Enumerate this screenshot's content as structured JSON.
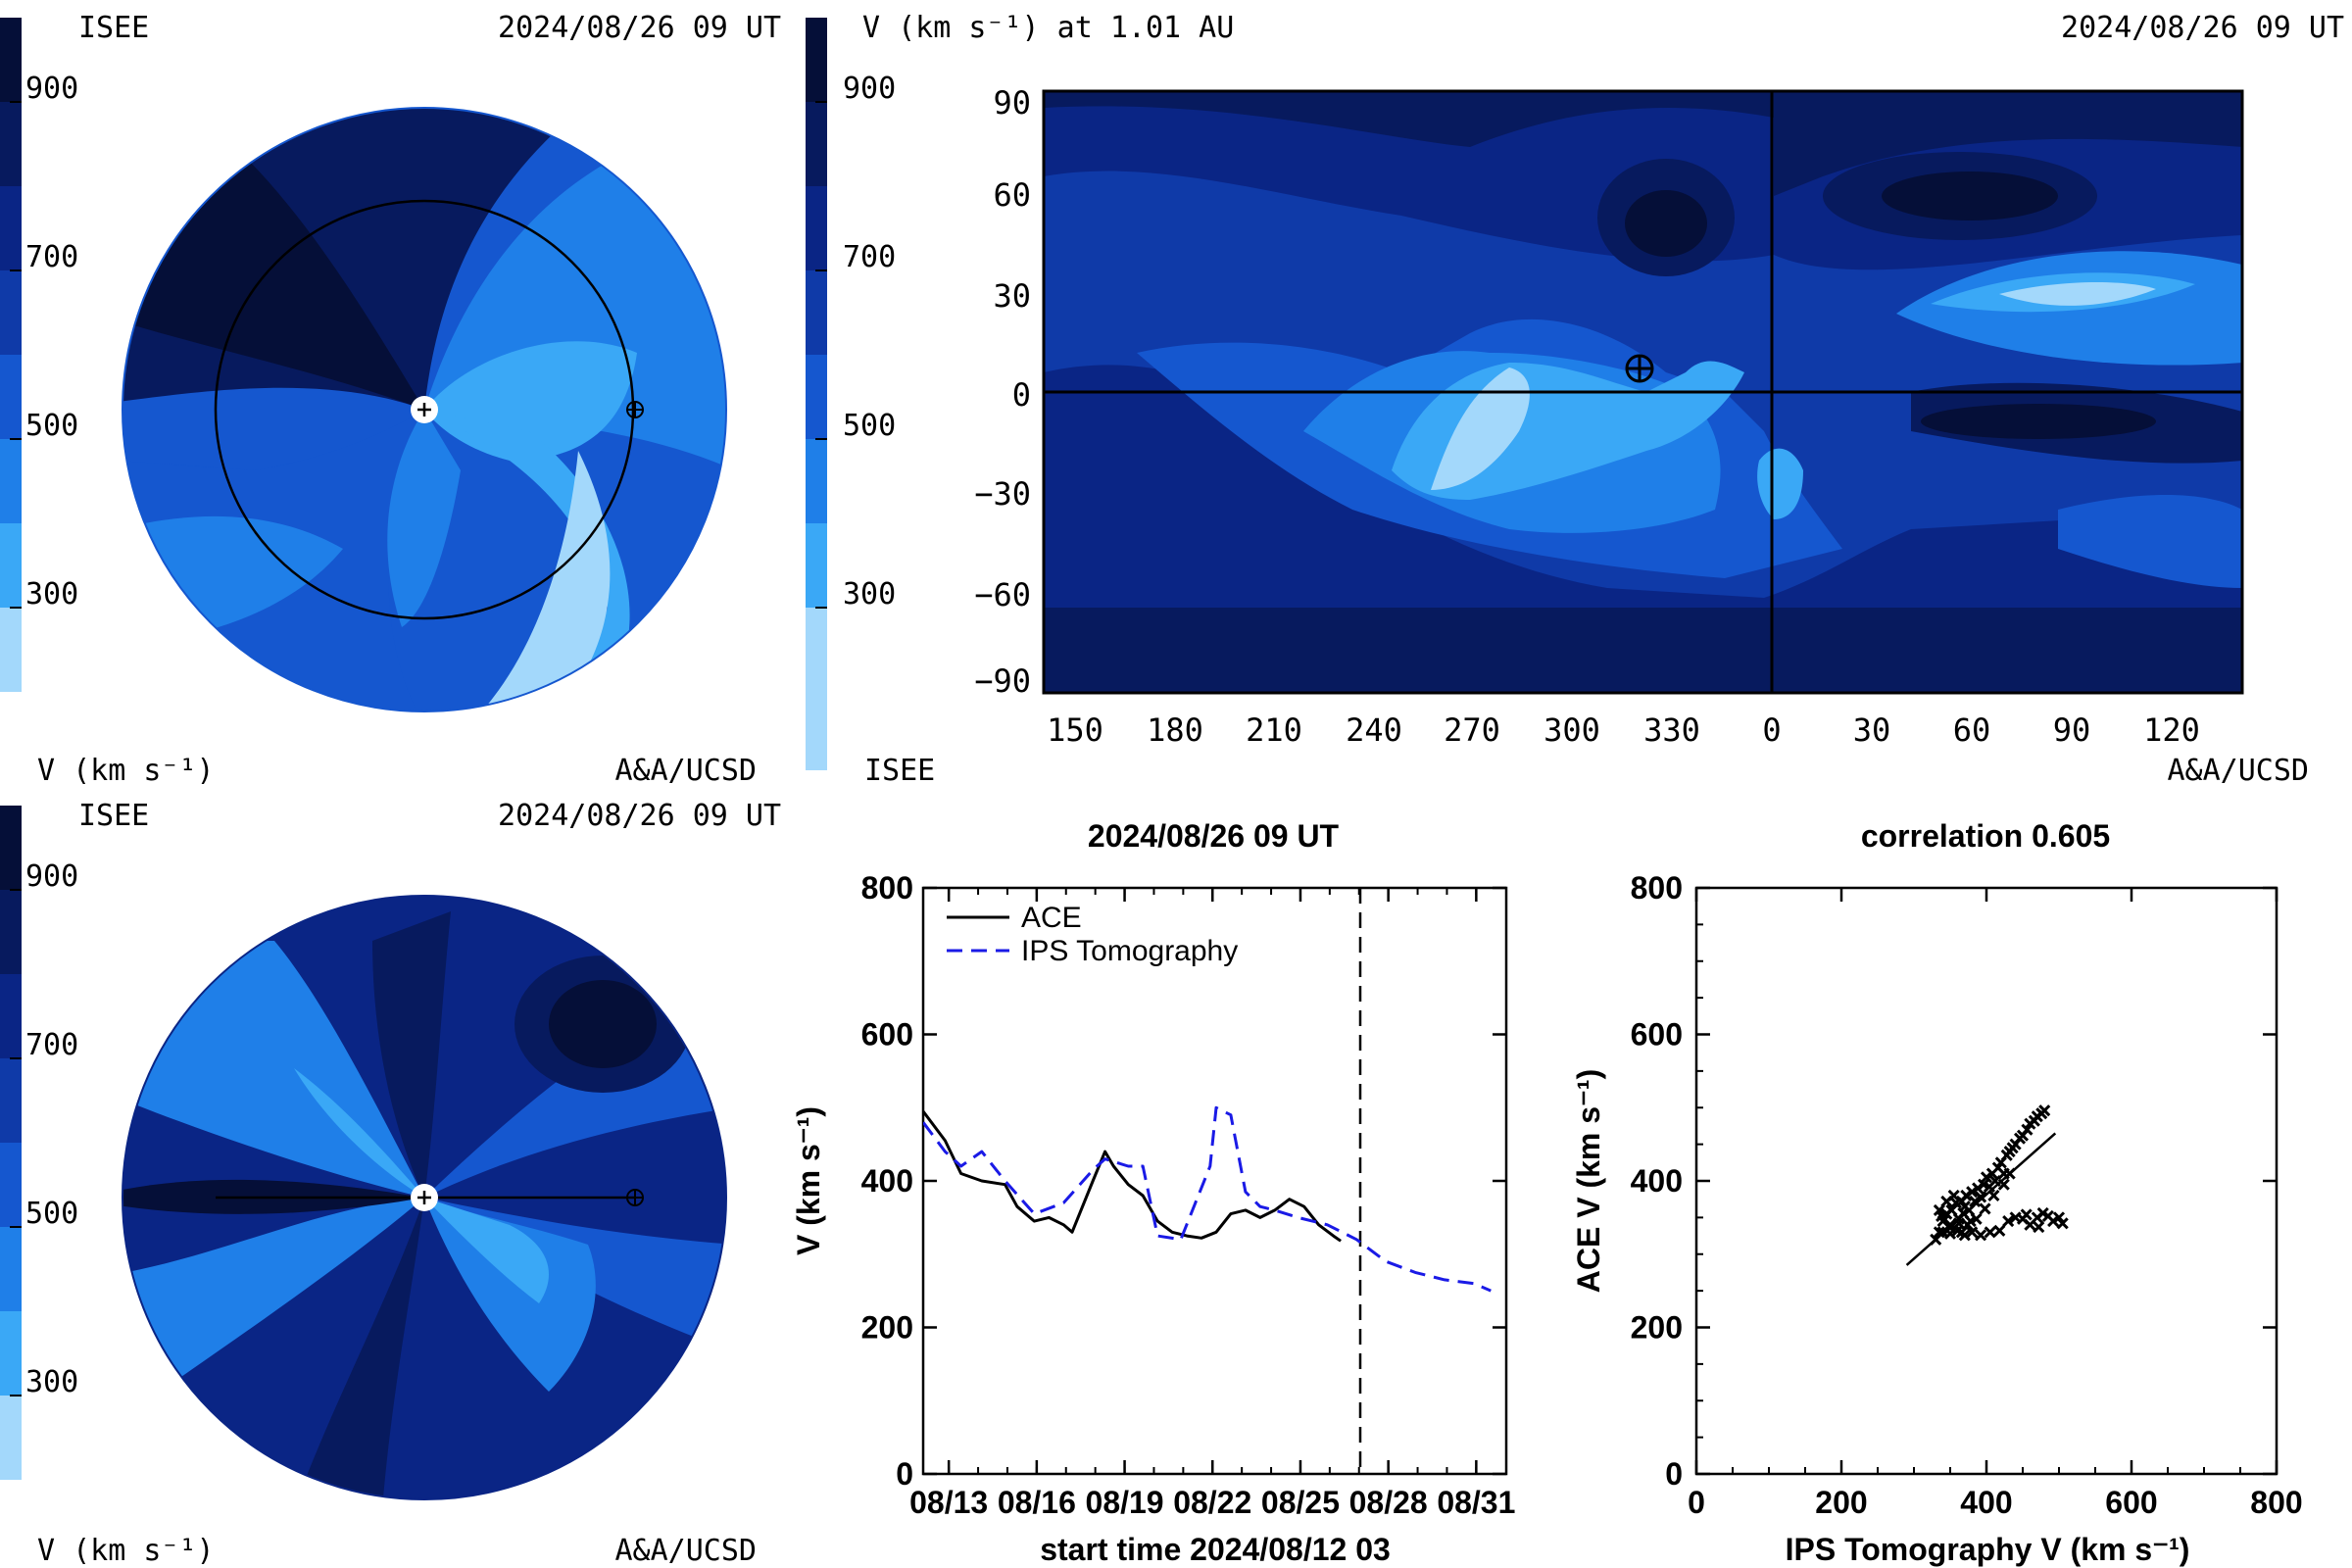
{
  "colors": {
    "band_ramp_light_to_dark": [
      "#a3d8fb",
      "#3aa8f6",
      "#1f7fe8",
      "#1557cf",
      "#0f3aa8",
      "#0a2585",
      "#071a5e",
      "#050f38"
    ],
    "tomography_line": "#1a1ae6",
    "ace_line": "#000000"
  },
  "colorbar": {
    "ticks": [
      {
        "label": "900",
        "value": 900
      },
      {
        "label": "700",
        "value": 700
      },
      {
        "label": "500",
        "value": 500
      },
      {
        "label": "300",
        "value": 300
      }
    ],
    "range": [
      100,
      1100
    ]
  },
  "panel_top_left": {
    "org": "ISEE",
    "timestamp": "2024/08/26 09 UT",
    "units_label": "V (km s⁻¹)",
    "credit": "A&A/UCSD",
    "view": "ecliptic-plane polar view"
  },
  "panel_top_right": {
    "title": "V (km s⁻¹) at 1.01 AU",
    "timestamp": "2024/08/26 09 UT",
    "org": "ISEE",
    "credit": "A&A/UCSD",
    "y_ticks": [
      "90",
      "60",
      "30",
      "0",
      "−30",
      "−60",
      "−90"
    ],
    "x_ticks": [
      "150",
      "180",
      "210",
      "240",
      "270",
      "300",
      "330",
      "0",
      "30",
      "60",
      "90",
      "120"
    ]
  },
  "panel_bottom_left": {
    "org": "ISEE",
    "timestamp": "2024/08/26 09 UT",
    "units_label": "V (km s⁻¹)",
    "credit": "A&A/UCSD",
    "view": "meridional-plane polar view"
  },
  "chart_data": [
    {
      "type": "line",
      "title": "2024/08/26 09 UT",
      "xlabel": "start time 2024/08/12 03",
      "ylabel": "V (km s⁻¹)",
      "ylim": [
        0,
        800
      ],
      "xlim_days": [
        0,
        19.9
      ],
      "x_tick_labels": [
        "08/13",
        "08/16",
        "08/19",
        "08/22",
        "08/25",
        "08/28",
        "08/31"
      ],
      "y_tick_labels": [
        "0",
        "200",
        "400",
        "600",
        "800"
      ],
      "current_time_marker": "2024/08/26 09 UT",
      "legend_position": "top-left",
      "series": [
        {
          "name": "ACE",
          "style": "solid",
          "color": "#000000",
          "x": [
            "08/12 03",
            "08/12 21",
            "08/13 10",
            "08/14 03",
            "08/14 22",
            "08/15 08",
            "08/15 22",
            "08/16 10",
            "08/16 22",
            "08/17 05",
            "08/17 22",
            "08/18 08",
            "08/18 15",
            "08/19 03",
            "08/19 15",
            "08/20 03",
            "08/20 15",
            "08/21 03",
            "08/21 15",
            "08/22 03",
            "08/22 15",
            "08/23 03",
            "08/23 15",
            "08/24 03",
            "08/24 15",
            "08/25 03",
            "08/25 15",
            "08/26 03",
            "08/26 09"
          ],
          "values": [
            495,
            455,
            410,
            400,
            395,
            365,
            345,
            350,
            340,
            330,
            400,
            440,
            420,
            395,
            380,
            345,
            330,
            325,
            322,
            330,
            355,
            360,
            350,
            360,
            375,
            365,
            340,
            325,
            318
          ]
        },
        {
          "name": "IPS Tomography",
          "style": "dashed",
          "color": "#1a1ae6",
          "x": [
            "08/12 03",
            "08/12 21",
            "08/13 10",
            "08/14 03",
            "08/14 22",
            "08/15 22",
            "08/16 22",
            "08/17 22",
            "08/18 08",
            "08/19 03",
            "08/19 15",
            "08/20 03",
            "08/20 22",
            "08/21 10",
            "08/21 22",
            "08/22 03",
            "08/22 15",
            "08/23 03",
            "08/23 15",
            "08/24 03",
            "08/24 22",
            "08/25 22",
            "08/26 22",
            "08/27 22",
            "08/28 22",
            "08/29 22",
            "08/30 22",
            "08/31 12"
          ],
          "values": [
            480,
            440,
            420,
            440,
            400,
            355,
            370,
            415,
            430,
            420,
            420,
            325,
            320,
            370,
            420,
            500,
            490,
            385,
            365,
            360,
            350,
            340,
            320,
            290,
            275,
            265,
            260,
            250
          ]
        }
      ]
    },
    {
      "type": "scatter",
      "title": "correlation 0.605",
      "xlabel": "IPS Tomography V (km s⁻¹)",
      "ylabel": "ACE V (km s⁻¹)",
      "xlim": [
        0,
        800
      ],
      "ylim": [
        0,
        800
      ],
      "x_tick_labels": [
        "0",
        "200",
        "400",
        "600",
        "800"
      ],
      "y_tick_labels": [
        "0",
        "200",
        "400",
        "600",
        "800"
      ],
      "correlation": 0.605,
      "fit_line": [
        [
          290,
          285
        ],
        [
          495,
          465
        ]
      ],
      "points": [
        [
          330,
          320
        ],
        [
          335,
          330
        ],
        [
          340,
          345
        ],
        [
          345,
          355
        ],
        [
          350,
          340
        ],
        [
          352,
          360
        ],
        [
          358,
          370
        ],
        [
          362,
          348
        ],
        [
          366,
          372
        ],
        [
          370,
          365
        ],
        [
          372,
          380
        ],
        [
          376,
          360
        ],
        [
          380,
          385
        ],
        [
          384,
          372
        ],
        [
          388,
          390
        ],
        [
          392,
          378
        ],
        [
          396,
          395
        ],
        [
          400,
          405
        ],
        [
          404,
          392
        ],
        [
          408,
          410
        ],
        [
          412,
          400
        ],
        [
          416,
          418
        ],
        [
          420,
          425
        ],
        [
          424,
          410
        ],
        [
          428,
          435
        ],
        [
          432,
          440
        ],
        [
          436,
          445
        ],
        [
          440,
          450
        ],
        [
          446,
          458
        ],
        [
          450,
          462
        ],
        [
          456,
          470
        ],
        [
          460,
          478
        ],
        [
          466,
          482
        ],
        [
          470,
          488
        ],
        [
          476,
          492
        ],
        [
          480,
          496
        ],
        [
          340,
          330
        ],
        [
          350,
          328
        ],
        [
          360,
          332
        ],
        [
          370,
          326
        ],
        [
          380,
          330
        ],
        [
          392,
          326
        ],
        [
          405,
          330
        ],
        [
          418,
          332
        ],
        [
          430,
          345
        ],
        [
          440,
          350
        ],
        [
          450,
          348
        ],
        [
          460,
          340
        ],
        [
          470,
          350
        ],
        [
          478,
          356
        ],
        [
          485,
          352
        ],
        [
          492,
          345
        ],
        [
          500,
          350
        ],
        [
          505,
          342
        ],
        [
          472,
          337
        ],
        [
          455,
          354
        ],
        [
          335,
          360
        ],
        [
          345,
          372
        ],
        [
          338,
          352
        ],
        [
          355,
          380
        ],
        [
          362,
          342
        ],
        [
          368,
          356
        ],
        [
          374,
          340
        ],
        [
          386,
          348
        ],
        [
          398,
          362
        ],
        [
          410,
          380
        ],
        [
          424,
          395
        ],
        [
          432,
          410
        ],
        [
          350,
          336
        ],
        [
          366,
          330
        ],
        [
          378,
          345
        ]
      ]
    }
  ]
}
